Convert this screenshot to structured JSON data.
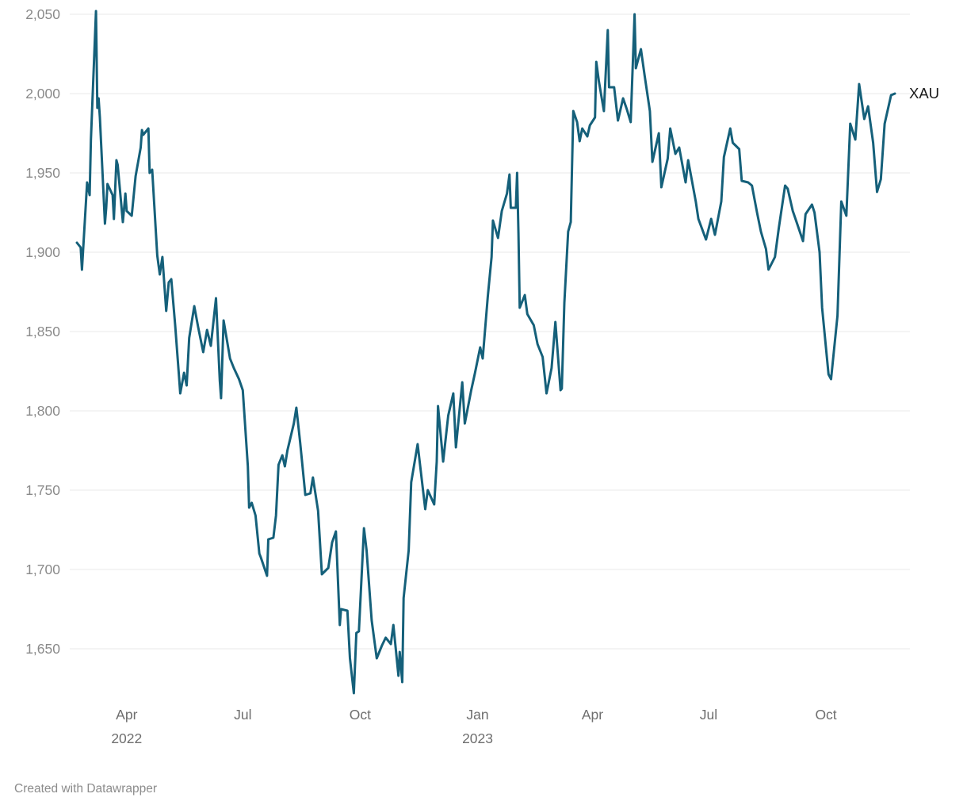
{
  "footer": {
    "attribution": "Created with Datawrapper"
  },
  "chart_data": {
    "type": "line",
    "title": "",
    "series_label": "XAU",
    "line_color": "#15607a",
    "grid_color": "#e8e8e8",
    "y_axis_label_color": "#8a8a8a",
    "x_axis_label_color": "#6e6e6e",
    "background_color": "#ffffff",
    "grid": true,
    "legend_position": "line-end",
    "y_domain": [
      1620,
      2055
    ],
    "x_domain": [
      "2022-02-21",
      "2023-11-24"
    ],
    "y_ticks": [
      {
        "value": 1650,
        "label": "1,650"
      },
      {
        "value": 1700,
        "label": "1,700"
      },
      {
        "value": 1750,
        "label": "1,750"
      },
      {
        "value": 1800,
        "label": "1,800"
      },
      {
        "value": 1850,
        "label": "1,850"
      },
      {
        "value": 1900,
        "label": "1,900"
      },
      {
        "value": 1950,
        "label": "1,950"
      },
      {
        "value": 2000,
        "label": "2,000"
      },
      {
        "value": 2050,
        "label": "2,050"
      }
    ],
    "x_ticks": [
      {
        "date": "2022-04-01",
        "label": "Apr",
        "year": "2022"
      },
      {
        "date": "2022-07-01",
        "label": "Jul",
        "year": ""
      },
      {
        "date": "2022-10-01",
        "label": "Oct",
        "year": ""
      },
      {
        "date": "2023-01-01",
        "label": "Jan",
        "year": "2023"
      },
      {
        "date": "2023-04-01",
        "label": "Apr",
        "year": ""
      },
      {
        "date": "2023-07-01",
        "label": "Jul",
        "year": ""
      },
      {
        "date": "2023-10-01",
        "label": "Oct",
        "year": ""
      }
    ],
    "points": [
      [
        "2022-02-21",
        1906
      ],
      [
        "2022-02-24",
        1903
      ],
      [
        "2022-02-25",
        1889
      ],
      [
        "2022-03-01",
        1944
      ],
      [
        "2022-03-03",
        1936
      ],
      [
        "2022-03-04",
        1971
      ],
      [
        "2022-03-08",
        2052
      ],
      [
        "2022-03-09",
        1991
      ],
      [
        "2022-03-10",
        1997
      ],
      [
        "2022-03-11",
        1985
      ],
      [
        "2022-03-15",
        1918
      ],
      [
        "2022-03-16",
        1928
      ],
      [
        "2022-03-17",
        1943
      ],
      [
        "2022-03-21",
        1936
      ],
      [
        "2022-03-22",
        1921
      ],
      [
        "2022-03-24",
        1958
      ],
      [
        "2022-03-25",
        1955
      ],
      [
        "2022-03-29",
        1919
      ],
      [
        "2022-03-31",
        1937
      ],
      [
        "2022-04-01",
        1926
      ],
      [
        "2022-04-05",
        1923
      ],
      [
        "2022-04-08",
        1948
      ],
      [
        "2022-04-12",
        1966
      ],
      [
        "2022-04-13",
        1977
      ],
      [
        "2022-04-14",
        1974
      ],
      [
        "2022-04-18",
        1978
      ],
      [
        "2022-04-19",
        1950
      ],
      [
        "2022-04-21",
        1952
      ],
      [
        "2022-04-25",
        1898
      ],
      [
        "2022-04-27",
        1886
      ],
      [
        "2022-04-29",
        1897
      ],
      [
        "2022-05-02",
        1863
      ],
      [
        "2022-05-04",
        1881
      ],
      [
        "2022-05-06",
        1883
      ],
      [
        "2022-05-09",
        1854
      ],
      [
        "2022-05-12",
        1822
      ],
      [
        "2022-05-13",
        1811
      ],
      [
        "2022-05-16",
        1824
      ],
      [
        "2022-05-18",
        1816
      ],
      [
        "2022-05-20",
        1846
      ],
      [
        "2022-05-24",
        1866
      ],
      [
        "2022-05-27",
        1853
      ],
      [
        "2022-05-31",
        1837
      ],
      [
        "2022-06-03",
        1851
      ],
      [
        "2022-06-06",
        1841
      ],
      [
        "2022-06-10",
        1871
      ],
      [
        "2022-06-13",
        1819
      ],
      [
        "2022-06-14",
        1808
      ],
      [
        "2022-06-16",
        1857
      ],
      [
        "2022-06-21",
        1833
      ],
      [
        "2022-06-24",
        1827
      ],
      [
        "2022-06-28",
        1820
      ],
      [
        "2022-07-01",
        1813
      ],
      [
        "2022-07-05",
        1765
      ],
      [
        "2022-07-06",
        1739
      ],
      [
        "2022-07-08",
        1742
      ],
      [
        "2022-07-11",
        1734
      ],
      [
        "2022-07-14",
        1710
      ],
      [
        "2022-07-15",
        1708
      ],
      [
        "2022-07-20",
        1696
      ],
      [
        "2022-07-21",
        1719
      ],
      [
        "2022-07-25",
        1720
      ],
      [
        "2022-07-27",
        1734
      ],
      [
        "2022-07-29",
        1766
      ],
      [
        "2022-08-01",
        1772
      ],
      [
        "2022-08-03",
        1765
      ],
      [
        "2022-08-05",
        1775
      ],
      [
        "2022-08-10",
        1792
      ],
      [
        "2022-08-12",
        1802
      ],
      [
        "2022-08-15",
        1780
      ],
      [
        "2022-08-19",
        1747
      ],
      [
        "2022-08-23",
        1748
      ],
      [
        "2022-08-25",
        1758
      ],
      [
        "2022-08-29",
        1737
      ],
      [
        "2022-09-01",
        1697
      ],
      [
        "2022-09-06",
        1701
      ],
      [
        "2022-09-09",
        1717
      ],
      [
        "2022-09-12",
        1724
      ],
      [
        "2022-09-15",
        1665
      ],
      [
        "2022-09-16",
        1675
      ],
      [
        "2022-09-21",
        1674
      ],
      [
        "2022-09-23",
        1644
      ],
      [
        "2022-09-26",
        1622
      ],
      [
        "2022-09-28",
        1660
      ],
      [
        "2022-09-30",
        1661
      ],
      [
        "2022-10-04",
        1726
      ],
      [
        "2022-10-06",
        1712
      ],
      [
        "2022-10-10",
        1668
      ],
      [
        "2022-10-14",
        1644
      ],
      [
        "2022-10-18",
        1652
      ],
      [
        "2022-10-21",
        1657
      ],
      [
        "2022-10-25",
        1653
      ],
      [
        "2022-10-27",
        1665
      ],
      [
        "2022-10-31",
        1633
      ],
      [
        "2022-11-01",
        1648
      ],
      [
        "2022-11-03",
        1629
      ],
      [
        "2022-11-04",
        1682
      ],
      [
        "2022-11-08",
        1712
      ],
      [
        "2022-11-10",
        1755
      ],
      [
        "2022-11-15",
        1779
      ],
      [
        "2022-11-21",
        1738
      ],
      [
        "2022-11-23",
        1750
      ],
      [
        "2022-11-28",
        1741
      ],
      [
        "2022-11-30",
        1768
      ],
      [
        "2022-12-01",
        1803
      ],
      [
        "2022-12-05",
        1768
      ],
      [
        "2022-12-09",
        1797
      ],
      [
        "2022-12-13",
        1811
      ],
      [
        "2022-12-15",
        1777
      ],
      [
        "2022-12-20",
        1818
      ],
      [
        "2022-12-22",
        1792
      ],
      [
        "2022-12-27",
        1813
      ],
      [
        "2022-12-30",
        1824
      ],
      [
        "2023-01-03",
        1840
      ],
      [
        "2023-01-05",
        1833
      ],
      [
        "2023-01-09",
        1872
      ],
      [
        "2023-01-12",
        1897
      ],
      [
        "2023-01-13",
        1920
      ],
      [
        "2023-01-17",
        1909
      ],
      [
        "2023-01-20",
        1926
      ],
      [
        "2023-01-24",
        1937
      ],
      [
        "2023-01-26",
        1949
      ],
      [
        "2023-01-27",
        1928
      ],
      [
        "2023-01-31",
        1928
      ],
      [
        "2023-02-01",
        1950
      ],
      [
        "2023-02-02",
        1912
      ],
      [
        "2023-02-03",
        1865
      ],
      [
        "2023-02-07",
        1873
      ],
      [
        "2023-02-09",
        1861
      ],
      [
        "2023-02-14",
        1854
      ],
      [
        "2023-02-17",
        1842
      ],
      [
        "2023-02-21",
        1834
      ],
      [
        "2023-02-24",
        1811
      ],
      [
        "2023-02-28",
        1827
      ],
      [
        "2023-03-03",
        1856
      ],
      [
        "2023-03-07",
        1813
      ],
      [
        "2023-03-08",
        1814
      ],
      [
        "2023-03-10",
        1868
      ],
      [
        "2023-03-13",
        1913
      ],
      [
        "2023-03-15",
        1919
      ],
      [
        "2023-03-17",
        1989
      ],
      [
        "2023-03-20",
        1982
      ],
      [
        "2023-03-22",
        1970
      ],
      [
        "2023-03-24",
        1978
      ],
      [
        "2023-03-28",
        1973
      ],
      [
        "2023-03-30",
        1980
      ],
      [
        "2023-04-03",
        1985
      ],
      [
        "2023-04-04",
        2020
      ],
      [
        "2023-04-06",
        2008
      ],
      [
        "2023-04-10",
        1989
      ],
      [
        "2023-04-13",
        2040
      ],
      [
        "2023-04-14",
        2004
      ],
      [
        "2023-04-18",
        2004
      ],
      [
        "2023-04-21",
        1983
      ],
      [
        "2023-04-25",
        1997
      ],
      [
        "2023-04-28",
        1990
      ],
      [
        "2023-05-01",
        1982
      ],
      [
        "2023-05-04",
        2050
      ],
      [
        "2023-05-05",
        2016
      ],
      [
        "2023-05-09",
        2028
      ],
      [
        "2023-05-12",
        2011
      ],
      [
        "2023-05-16",
        1989
      ],
      [
        "2023-05-18",
        1957
      ],
      [
        "2023-05-23",
        1975
      ],
      [
        "2023-05-25",
        1941
      ],
      [
        "2023-05-30",
        1959
      ],
      [
        "2023-06-01",
        1978
      ],
      [
        "2023-06-05",
        1962
      ],
      [
        "2023-06-08",
        1966
      ],
      [
        "2023-06-13",
        1944
      ],
      [
        "2023-06-15",
        1958
      ],
      [
        "2023-06-21",
        1932
      ],
      [
        "2023-06-23",
        1921
      ],
      [
        "2023-06-29",
        1908
      ],
      [
        "2023-07-03",
        1921
      ],
      [
        "2023-07-06",
        1911
      ],
      [
        "2023-07-11",
        1932
      ],
      [
        "2023-07-13",
        1960
      ],
      [
        "2023-07-18",
        1978
      ],
      [
        "2023-07-20",
        1969
      ],
      [
        "2023-07-25",
        1965
      ],
      [
        "2023-07-27",
        1945
      ],
      [
        "2023-08-01",
        1944
      ],
      [
        "2023-08-04",
        1942
      ],
      [
        "2023-08-08",
        1925
      ],
      [
        "2023-08-11",
        1913
      ],
      [
        "2023-08-15",
        1902
      ],
      [
        "2023-08-17",
        1889
      ],
      [
        "2023-08-22",
        1897
      ],
      [
        "2023-08-25",
        1915
      ],
      [
        "2023-08-30",
        1942
      ],
      [
        "2023-09-01",
        1940
      ],
      [
        "2023-09-05",
        1926
      ],
      [
        "2023-09-08",
        1919
      ],
      [
        "2023-09-13",
        1907
      ],
      [
        "2023-09-15",
        1924
      ],
      [
        "2023-09-20",
        1930
      ],
      [
        "2023-09-22",
        1925
      ],
      [
        "2023-09-26",
        1900
      ],
      [
        "2023-09-28",
        1865
      ],
      [
        "2023-10-03",
        1823
      ],
      [
        "2023-10-05",
        1820
      ],
      [
        "2023-10-10",
        1860
      ],
      [
        "2023-10-13",
        1932
      ],
      [
        "2023-10-17",
        1923
      ],
      [
        "2023-10-20",
        1981
      ],
      [
        "2023-10-24",
        1971
      ],
      [
        "2023-10-27",
        2006
      ],
      [
        "2023-10-31",
        1984
      ],
      [
        "2023-11-03",
        1992
      ],
      [
        "2023-11-07",
        1969
      ],
      [
        "2023-11-10",
        1938
      ],
      [
        "2023-11-13",
        1946
      ],
      [
        "2023-11-16",
        1981
      ],
      [
        "2023-11-21",
        1999
      ],
      [
        "2023-11-24",
        2000
      ]
    ]
  }
}
